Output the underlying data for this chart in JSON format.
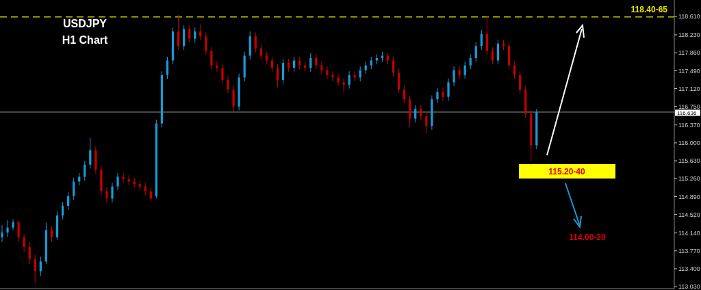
{
  "chart_data": {
    "type": "candlestick",
    "title": "USDJPY",
    "subtitle": "H1 Chart",
    "categories": [
      null,
      null,
      null,
      null,
      null,
      null,
      null,
      null,
      null,
      null,
      null,
      null,
      null,
      null,
      null,
      null,
      null,
      null,
      null,
      null,
      null,
      null,
      null,
      null,
      null,
      null,
      null,
      null,
      null,
      null,
      null,
      null,
      null,
      null,
      null,
      null,
      null,
      null,
      null,
      null,
      null,
      null,
      null,
      null,
      null,
      null,
      null,
      null,
      null,
      null,
      null,
      null,
      null,
      null,
      null,
      null,
      null,
      null,
      null,
      null,
      null,
      null,
      null,
      null,
      null,
      null,
      null,
      null,
      null,
      null,
      null,
      null,
      null,
      null,
      null,
      null,
      null,
      null,
      null,
      null,
      null,
      null,
      null,
      null,
      null,
      null,
      null,
      null,
      null,
      null,
      null,
      null,
      null,
      null,
      null,
      null,
      null,
      null,
      null,
      null,
      null,
      null,
      null,
      null,
      null,
      null,
      null,
      null,
      null,
      null,
      null,
      null,
      null,
      null,
      null,
      null,
      null,
      null,
      null,
      null,
      null,
      null
    ],
    "ohlc": [
      [
        114.05,
        114.3,
        113.95,
        114.15
      ],
      [
        114.15,
        114.4,
        114.05,
        114.25
      ],
      [
        114.25,
        114.42,
        114.2,
        114.36
      ],
      [
        114.36,
        114.4,
        113.95,
        114.05
      ],
      [
        114.05,
        114.12,
        113.75,
        113.85
      ],
      [
        113.85,
        113.95,
        113.5,
        113.6
      ],
      [
        113.6,
        113.7,
        113.12,
        113.35
      ],
      [
        113.35,
        113.65,
        113.25,
        113.55
      ],
      [
        113.55,
        114.35,
        113.5,
        114.2
      ],
      [
        114.2,
        114.28,
        113.95,
        114.05
      ],
      [
        114.05,
        114.58,
        114.0,
        114.5
      ],
      [
        114.5,
        114.78,
        114.42,
        114.7
      ],
      [
        114.7,
        114.98,
        114.62,
        114.9
      ],
      [
        114.9,
        115.28,
        114.82,
        115.2
      ],
      [
        115.2,
        115.38,
        115.12,
        115.3
      ],
      [
        115.3,
        115.63,
        115.22,
        115.55
      ],
      [
        115.55,
        116.1,
        115.47,
        115.85
      ],
      [
        115.85,
        115.93,
        115.37,
        115.45
      ],
      [
        115.45,
        115.53,
        114.92,
        115.0
      ],
      [
        115.0,
        115.08,
        114.75,
        114.85
      ],
      [
        114.85,
        115.18,
        114.77,
        115.1
      ],
      [
        115.1,
        115.38,
        115.02,
        115.3
      ],
      [
        115.3,
        115.38,
        115.17,
        115.25
      ],
      [
        115.25,
        115.33,
        115.12,
        115.2
      ],
      [
        115.2,
        115.28,
        115.07,
        115.15
      ],
      [
        115.15,
        115.23,
        115.02,
        115.1
      ],
      [
        115.1,
        115.18,
        114.92,
        115.0
      ],
      [
        115.0,
        115.08,
        114.8,
        114.85
      ],
      [
        114.9,
        116.48,
        114.85,
        116.4
      ],
      [
        116.4,
        117.48,
        116.32,
        117.4
      ],
      [
        117.4,
        117.78,
        117.32,
        117.7
      ],
      [
        117.7,
        118.38,
        117.62,
        118.3
      ],
      [
        118.3,
        118.64,
        117.92,
        118.0
      ],
      [
        118.0,
        118.43,
        117.92,
        118.35
      ],
      [
        118.35,
        118.43,
        118.07,
        118.15
      ],
      [
        118.15,
        118.38,
        118.07,
        118.3
      ],
      [
        118.3,
        118.45,
        118.12,
        118.2
      ],
      [
        118.2,
        118.28,
        117.82,
        117.9
      ],
      [
        117.9,
        117.98,
        117.52,
        117.6
      ],
      [
        117.6,
        117.68,
        117.47,
        117.55
      ],
      [
        117.55,
        117.63,
        117.22,
        117.3
      ],
      [
        117.3,
        117.38,
        117.02,
        117.1
      ],
      [
        117.1,
        117.18,
        116.65,
        116.75
      ],
      [
        116.75,
        117.43,
        116.67,
        117.35
      ],
      [
        117.35,
        117.88,
        117.27,
        117.8
      ],
      [
        117.8,
        118.3,
        117.72,
        118.2
      ],
      [
        118.2,
        118.28,
        117.87,
        117.95
      ],
      [
        117.95,
        118.03,
        117.72,
        117.8
      ],
      [
        117.8,
        117.88,
        117.62,
        117.7
      ],
      [
        117.7,
        117.78,
        117.47,
        117.55
      ],
      [
        117.55,
        117.63,
        117.15,
        117.3
      ],
      [
        117.3,
        117.73,
        117.22,
        117.65
      ],
      [
        117.65,
        117.73,
        117.47,
        117.55
      ],
      [
        117.55,
        117.78,
        117.47,
        117.7
      ],
      [
        117.7,
        117.78,
        117.52,
        117.6
      ],
      [
        117.6,
        117.68,
        117.47,
        117.55
      ],
      [
        117.55,
        117.85,
        117.47,
        117.75
      ],
      [
        117.75,
        117.83,
        117.52,
        117.6
      ],
      [
        117.6,
        117.68,
        117.42,
        117.5
      ],
      [
        117.5,
        117.58,
        117.32,
        117.4
      ],
      [
        117.4,
        117.48,
        117.27,
        117.35
      ],
      [
        117.35,
        117.43,
        117.17,
        117.25
      ],
      [
        117.25,
        117.33,
        117.05,
        117.2
      ],
      [
        117.2,
        117.48,
        117.12,
        117.4
      ],
      [
        117.4,
        117.48,
        117.27,
        117.35
      ],
      [
        117.35,
        117.58,
        117.27,
        117.5
      ],
      [
        117.5,
        117.68,
        117.42,
        117.6
      ],
      [
        117.6,
        117.78,
        117.52,
        117.7
      ],
      [
        117.7,
        117.83,
        117.62,
        117.75
      ],
      [
        117.75,
        117.88,
        117.67,
        117.8
      ],
      [
        117.8,
        117.85,
        117.62,
        117.7
      ],
      [
        117.7,
        117.78,
        117.37,
        117.45
      ],
      [
        117.45,
        117.53,
        117.02,
        117.1
      ],
      [
        117.1,
        117.18,
        116.82,
        116.9
      ],
      [
        116.9,
        116.98,
        116.32,
        116.5
      ],
      [
        116.5,
        116.78,
        116.42,
        116.7
      ],
      [
        116.7,
        116.78,
        116.47,
        116.55
      ],
      [
        116.55,
        116.63,
        116.2,
        116.35
      ],
      [
        116.35,
        116.98,
        116.27,
        116.9
      ],
      [
        116.9,
        117.13,
        116.82,
        117.05
      ],
      [
        117.05,
        117.13,
        116.87,
        116.95
      ],
      [
        116.95,
        117.33,
        116.87,
        117.25
      ],
      [
        117.25,
        117.58,
        117.17,
        117.5
      ],
      [
        117.5,
        117.58,
        117.32,
        117.4
      ],
      [
        117.4,
        117.68,
        117.32,
        117.6
      ],
      [
        117.6,
        117.83,
        117.52,
        117.75
      ],
      [
        117.75,
        118.08,
        117.67,
        118.0
      ],
      [
        118.0,
        118.33,
        117.92,
        118.25
      ],
      [
        118.25,
        118.61,
        117.82,
        117.9
      ],
      [
        117.9,
        117.98,
        117.62,
        117.7
      ],
      [
        117.7,
        118.13,
        117.62,
        118.05
      ],
      [
        118.05,
        118.13,
        117.92,
        118.0
      ],
      [
        118.0,
        118.08,
        117.52,
        117.6
      ],
      [
        117.6,
        117.68,
        117.32,
        117.4
      ],
      [
        117.4,
        117.48,
        117.02,
        117.1
      ],
      [
        117.1,
        117.18,
        116.52,
        116.6
      ],
      [
        116.6,
        116.68,
        115.63,
        115.95
      ],
      [
        115.95,
        116.7,
        115.87,
        116.64
      ],
      null,
      null,
      null,
      null,
      null,
      null,
      null,
      null,
      null,
      null,
      null,
      null,
      null,
      null,
      null,
      null,
      null,
      null,
      null,
      null,
      null,
      null,
      null,
      null
    ],
    "colors": [
      "#1a9ad6",
      "#1a9ad6",
      "#1a9ad6",
      "#c40000",
      "#c40000",
      "#c40000",
      "#c40000",
      "#1a9ad6",
      "#1a9ad6",
      "#c40000",
      "#1a9ad6",
      "#1a9ad6",
      "#1a9ad6",
      "#1a9ad6",
      "#1a9ad6",
      "#1a9ad6",
      "#1a9ad6",
      "#c40000",
      "#c40000",
      "#c40000",
      "#1a9ad6",
      "#1a9ad6",
      "#c40000",
      "#c40000",
      "#c40000",
      "#c40000",
      "#c40000",
      "#c40000",
      "#1a9ad6",
      "#1a9ad6",
      "#1a9ad6",
      "#1a9ad6",
      "#c40000",
      "#1a9ad6",
      "#c40000",
      "#1a9ad6",
      "#c40000",
      "#c40000",
      "#c40000",
      "#c40000",
      "#c40000",
      "#c40000",
      "#c40000",
      "#1a9ad6",
      "#1a9ad6",
      "#1a9ad6",
      "#c40000",
      "#c40000",
      "#c40000",
      "#c40000",
      "#c40000",
      "#1a9ad6",
      "#c40000",
      "#1a9ad6",
      "#c40000",
      "#c40000",
      "#1a9ad6",
      "#c40000",
      "#c40000",
      "#c40000",
      "#c40000",
      "#c40000",
      "#c40000",
      "#1a9ad6",
      "#c40000",
      "#1a9ad6",
      "#1a9ad6",
      "#1a9ad6",
      "#1a9ad6",
      "#1a9ad6",
      "#c40000",
      "#c40000",
      "#c40000",
      "#c40000",
      "#c40000",
      "#1a9ad6",
      "#c40000",
      "#c40000",
      "#1a9ad6",
      "#1a9ad6",
      "#c40000",
      "#1a9ad6",
      "#1a9ad6",
      "#c40000",
      "#1a9ad6",
      "#1a9ad6",
      "#1a9ad6",
      "#1a9ad6",
      "#c40000",
      "#c40000",
      "#1a9ad6",
      "#c40000",
      "#c40000",
      "#c40000",
      "#c40000",
      "#c40000",
      "#c40000",
      "#1a9ad6",
      null,
      null,
      null,
      null,
      null,
      null,
      null,
      null,
      null,
      null,
      null,
      null,
      null,
      null,
      null,
      null,
      null,
      null,
      null,
      null,
      null,
      null,
      null,
      null
    ],
    "ylim": [
      112.99,
      118.95
    ],
    "yticks": [
      {
        "value": 113.03,
        "label": "113.030"
      },
      {
        "value": 113.4,
        "label": "113.400"
      },
      {
        "value": 113.77,
        "label": "113.770"
      },
      {
        "value": 114.14,
        "label": "114.140"
      },
      {
        "value": 114.52,
        "label": "114.520"
      },
      {
        "value": 114.89,
        "label": "114.890"
      },
      {
        "value": 115.26,
        "label": "115.260"
      },
      {
        "value": 115.63,
        "label": "115.630"
      },
      {
        "value": 116,
        "label": "116.000"
      },
      {
        "value": 116.37,
        "label": "116.370"
      },
      {
        "value": 116.75,
        "label": "116.750"
      },
      {
        "value": 117.12,
        "label": "117.120"
      },
      {
        "value": 117.49,
        "label": "117.490"
      },
      {
        "value": 117.86,
        "label": "117.860"
      },
      {
        "value": 118.23,
        "label": "118.230"
      },
      {
        "value": 118.61,
        "label": "118.610"
      }
    ],
    "tick_labels": "y",
    "ref_lines": [
      {
        "axis": "y",
        "value": 118.6,
        "color": "#c8c800",
        "line_style": "dashed"
      },
      {
        "axis": "y",
        "value": 116.636,
        "label": "116.636",
        "color": "#808080",
        "line_style": "solid"
      }
    ],
    "annotations": [
      "115.20-40",
      "114.00-20",
      "118.40-65"
    ]
  }
}
